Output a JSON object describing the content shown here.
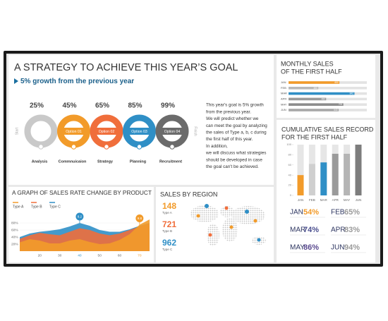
{
  "strategy": {
    "title": "A STRATEGY TO ACHIEVE THIS YEAR’S GOAL",
    "subtitle": "5% growth from the previous year",
    "start": "Start",
    "finish": "Finish",
    "steps": [
      {
        "percent": "25%",
        "name": "Analysis",
        "color": "#c9c9c9"
      },
      {
        "percent": "45%",
        "option": "Option 01",
        "name": "Commnuicaion",
        "color": "#f29b2a"
      },
      {
        "percent": "65%",
        "option": "Option 02",
        "name": "Strategy",
        "color": "#f06e3b"
      },
      {
        "percent": "85%",
        "option": "Option 03",
        "name": "Planning",
        "color": "#2f8fc6"
      },
      {
        "percent": "99%",
        "option": "Option 04",
        "name": "Recruitment",
        "color": "#6b6b6b"
      }
    ],
    "paragraph": [
      "This year's goal is 5% growth",
      "from the previous year.",
      "We will predict whether we",
      "can meet the goal by analyzing",
      "the sales of Type a, b, c during",
      "the first half of this year.",
      "In addition,",
      "we will discuss what strategies",
      "should be developed in case",
      "the goal can't be achieved."
    ]
  },
  "chart_data": [
    {
      "type": "bar",
      "orientation": "horizontal",
      "title_lines": [
        "MONTHLY SALES",
        "OF THE FIRST HALF"
      ],
      "categories": [
        "JAN",
        "FEB",
        "MAR",
        "APR",
        "MAY",
        "JUN"
      ],
      "values": [
        650,
        380,
        842,
        480,
        700,
        640
      ],
      "colors": [
        "#f29b2a",
        "#b9b9b9",
        "#2f8fc6",
        "#9a9a9a",
        "#8c8c8c",
        "#a8a8a8"
      ],
      "xlim": [
        0,
        1000
      ]
    },
    {
      "type": "bar",
      "orientation": "vertical",
      "title_lines": [
        "CUMULATIVE SALES RECORD",
        "FOR THE FIRST HALF"
      ],
      "categories": [
        "JAN",
        "FEB",
        "MAR",
        "APR",
        "MAY",
        "JUN"
      ],
      "values": [
        40,
        62,
        65,
        82,
        82,
        100
      ],
      "colors": [
        "#f29b2a",
        "#cfcfcf",
        "#2f8fc6",
        "#9a9a9a",
        "#b5b5b5",
        "#7d7d7d"
      ],
      "ylim": [
        0,
        100
      ],
      "yticks": [
        0,
        20,
        40,
        60,
        80,
        100
      ],
      "records": [
        {
          "month": "JAN",
          "percent": "54%",
          "color": "#f29b2a"
        },
        {
          "month": "FEB",
          "percent": "65%",
          "color": "#9a9a9a"
        },
        {
          "month": "MAR",
          "percent": "74%",
          "color": "#4b4f8f"
        },
        {
          "month": "APR",
          "percent": "83%",
          "color": "#9a9a9a"
        },
        {
          "month": "MAY",
          "percent": "86%",
          "color": "#5a4a8f"
        },
        {
          "month": "JUN",
          "percent": "94%",
          "color": "#9a9a9a"
        }
      ]
    },
    {
      "type": "area",
      "title": "A GRAPH OF SALES RATE CHANGE BY PRODUCT",
      "x": [
        10,
        15,
        20,
        25,
        30,
        35,
        40,
        45,
        50,
        55,
        60,
        65,
        70,
        75
      ],
      "series": [
        {
          "name": "Type A",
          "color": "#f29b2a",
          "values": [
            25,
            34,
            30,
            22,
            22,
            30,
            34,
            26,
            20,
            22,
            32,
            48,
            75,
            90
          ]
        },
        {
          "name": "Type B",
          "color": "#f06e3b",
          "values": [
            35,
            45,
            52,
            48,
            45,
            55,
            65,
            60,
            50,
            45,
            50,
            60,
            70,
            78
          ]
        },
        {
          "name": "Type C",
          "color": "#2f8fc6",
          "values": [
            40,
            50,
            55,
            58,
            62,
            70,
            80,
            72,
            60,
            55,
            55,
            62,
            72,
            80
          ]
        }
      ],
      "xlim": [
        10,
        75
      ],
      "xticks": [
        20,
        30,
        40,
        50,
        60,
        70
      ],
      "ylim": [
        0,
        100
      ],
      "yticks": [
        {
          "value": 20,
          "label": "20%"
        },
        {
          "value": 40,
          "label": "40%"
        },
        {
          "value": 60,
          "label": "60%"
        },
        {
          "value": 80,
          "label": "80%"
        }
      ],
      "annotations": [
        {
          "x": 40,
          "series": 2,
          "text": "8.2"
        },
        {
          "x": 70,
          "series": 0,
          "text": "9.8"
        }
      ]
    }
  ],
  "region": {
    "title": "SALES BY REGION",
    "stats": [
      {
        "value": 148,
        "label": "Type A",
        "color": "#f29b2a"
      },
      {
        "value": 721,
        "label": "Type B",
        "color": "#f06e3b"
      },
      {
        "value": 962,
        "label": "Type C",
        "color": "#2f8fc6"
      }
    ]
  }
}
